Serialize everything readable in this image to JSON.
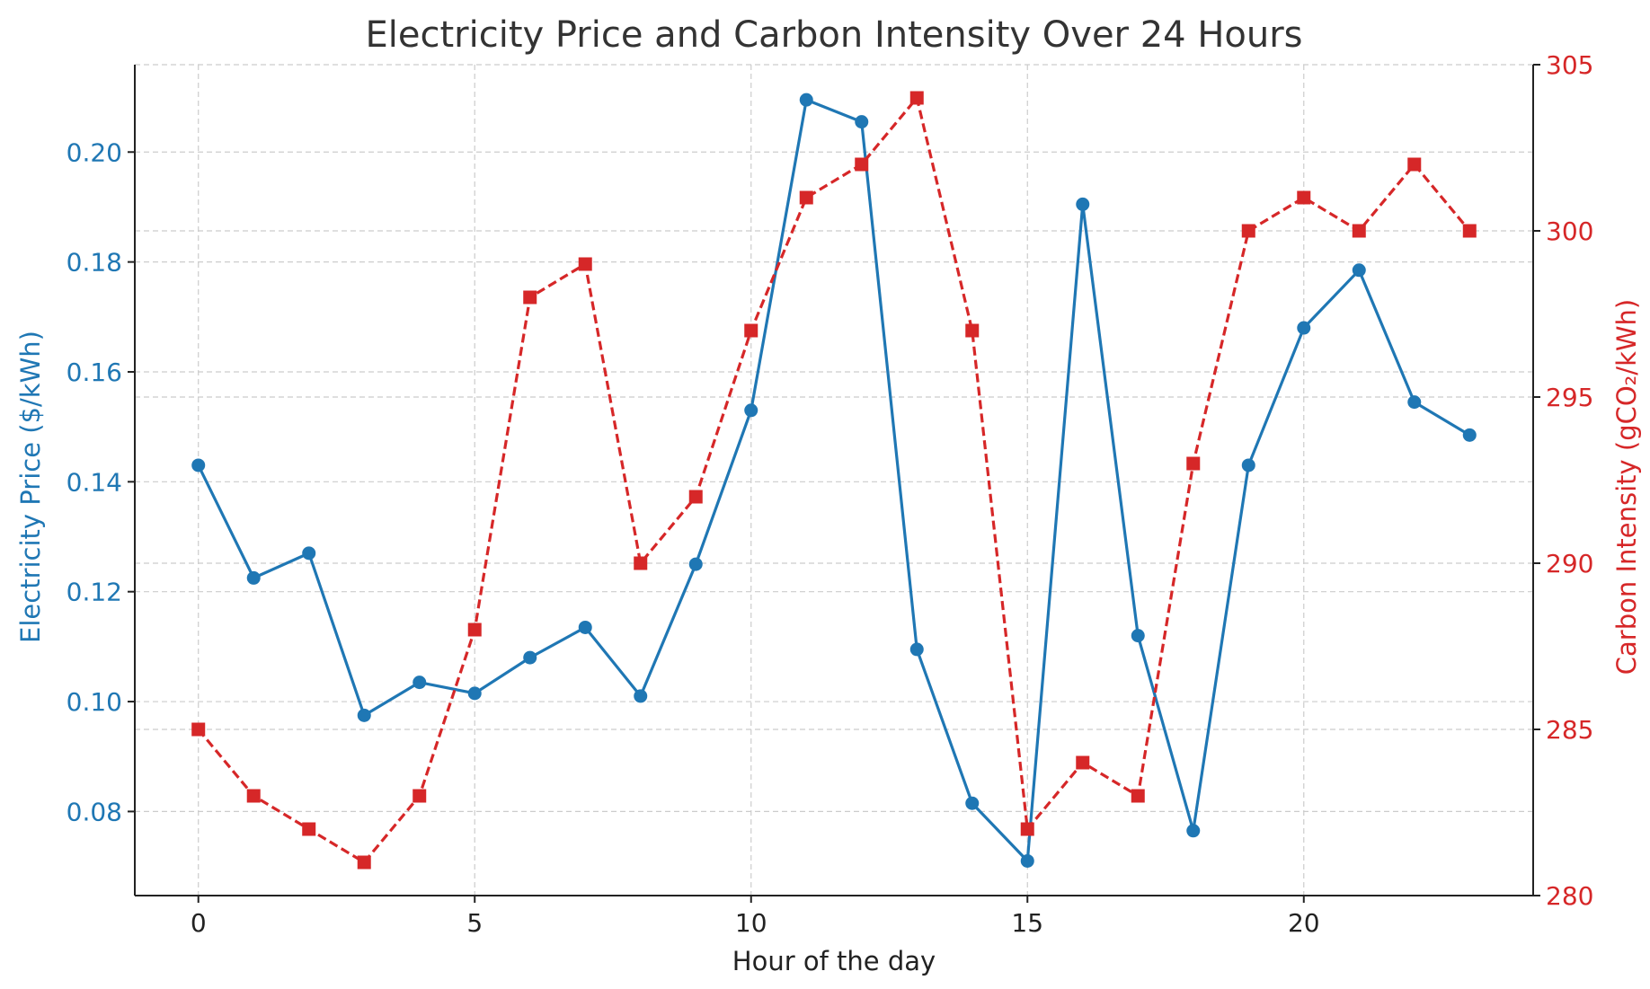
{
  "chart_data": {
    "type": "line",
    "title": "Electricity Price and Carbon Intensity Over 24 Hours",
    "xlabel": "Hour of the day",
    "ylabel_left": "Electricity Price ($/kWh)",
    "ylabel_right": "Carbon Intensity (gCO₂/kWh)",
    "x": [
      0,
      1,
      2,
      3,
      4,
      5,
      6,
      7,
      8,
      9,
      10,
      11,
      12,
      13,
      14,
      15,
      16,
      17,
      18,
      19,
      20,
      21,
      22,
      23
    ],
    "x_ticks": [
      0,
      5,
      10,
      15,
      20
    ],
    "xlim": [
      -1.15,
      24.15
    ],
    "y_left_ticks": [
      0.08,
      0.1,
      0.12,
      0.14,
      0.16,
      0.18,
      0.2
    ],
    "y_left_tick_labels": [
      "0.08",
      "0.10",
      "0.12",
      "0.14",
      "0.16",
      "0.18",
      "0.20"
    ],
    "ylim_left": [
      0.0647,
      0.2159
    ],
    "y_right_ticks": [
      280,
      285,
      290,
      295,
      300,
      305
    ],
    "y_right_tick_labels": [
      "280",
      "285",
      "290",
      "295",
      "300",
      "305"
    ],
    "ylim_right": [
      280,
      305
    ],
    "grid": true,
    "series": [
      {
        "name": "Electricity Price",
        "axis": "left",
        "color": "#1f77b4",
        "line_style": "solid",
        "marker": "circle",
        "values": [
          0.143,
          0.1225,
          0.127,
          0.0975,
          0.1035,
          0.1015,
          0.108,
          0.1135,
          0.101,
          0.125,
          0.153,
          0.2095,
          0.2055,
          0.1095,
          0.0815,
          0.071,
          0.1905,
          0.112,
          0.0765,
          0.143,
          0.168,
          0.1785,
          0.1545,
          0.1485
        ]
      },
      {
        "name": "Carbon Intensity",
        "axis": "right",
        "color": "#d62728",
        "line_style": "dashed",
        "marker": "square",
        "values": [
          285,
          283,
          282,
          281,
          283,
          288,
          298,
          299,
          290,
          292,
          297,
          301,
          302,
          304,
          297,
          282,
          284,
          283,
          293,
          300,
          301,
          300,
          302,
          300
        ]
      }
    ],
    "colors": {
      "left_axis": "#1f77b4",
      "right_axis": "#d62728",
      "axis_text": "#222222",
      "title": "#333333"
    }
  }
}
